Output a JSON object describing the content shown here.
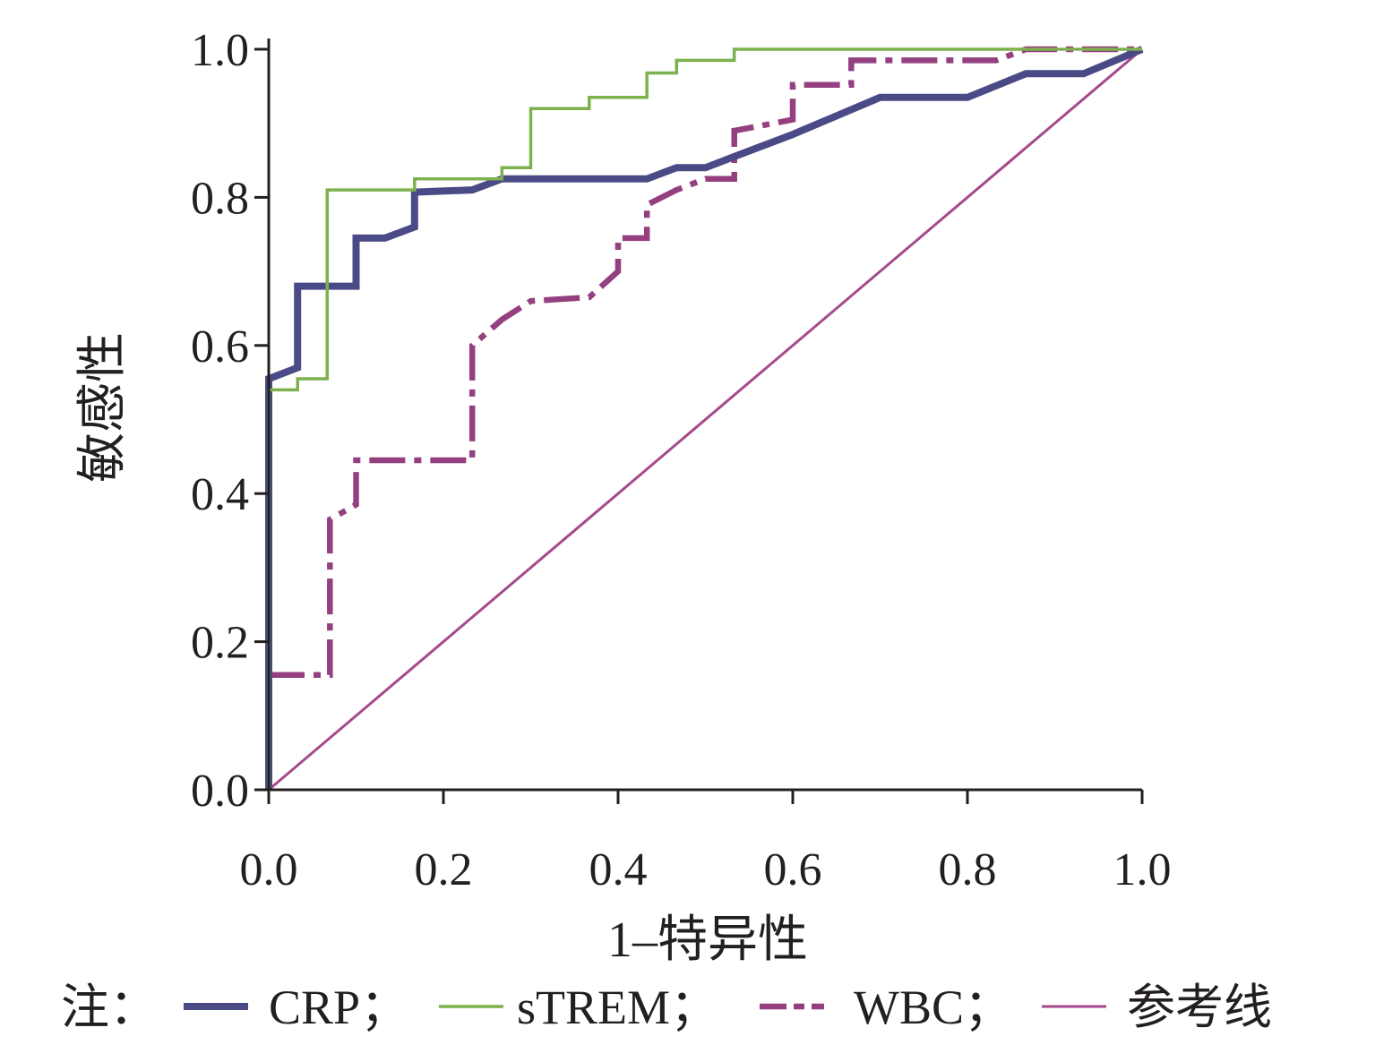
{
  "chart_data": {
    "type": "line",
    "title": "",
    "xlabel": "1–特异性",
    "ylabel": "敏感性",
    "xlim": [
      0,
      1
    ],
    "ylim": [
      0,
      1
    ],
    "xticks": [
      "0.0",
      "0.2",
      "0.4",
      "0.6",
      "0.8",
      "1.0"
    ],
    "yticks": [
      "0.0",
      "0.2",
      "0.4",
      "0.6",
      "0.8",
      "1.0"
    ],
    "grid": false,
    "legend_position": "bottom",
    "legend_prefix": "注：",
    "series": [
      {
        "name": "CRP；",
        "color": "#4a4a86",
        "style": "solid-thick",
        "points": [
          [
            0,
            0
          ],
          [
            0,
            0.555
          ],
          [
            0.033,
            0.57
          ],
          [
            0.033,
            0.68
          ],
          [
            0.1,
            0.68
          ],
          [
            0.1,
            0.745
          ],
          [
            0.133,
            0.745
          ],
          [
            0.167,
            0.76
          ],
          [
            0.167,
            0.807
          ],
          [
            0.233,
            0.81
          ],
          [
            0.267,
            0.825
          ],
          [
            0.333,
            0.825
          ],
          [
            0.433,
            0.825
          ],
          [
            0.467,
            0.84
          ],
          [
            0.5,
            0.84
          ],
          [
            0.533,
            0.855
          ],
          [
            0.6,
            0.885
          ],
          [
            0.7,
            0.935
          ],
          [
            0.8,
            0.935
          ],
          [
            0.867,
            0.967
          ],
          [
            0.933,
            0.967
          ],
          [
            1,
            1
          ]
        ]
      },
      {
        "name": "sTREM；",
        "color": "#7db14e",
        "style": "solid-thin",
        "points": [
          [
            0,
            0
          ],
          [
            0,
            0.54
          ],
          [
            0.033,
            0.54
          ],
          [
            0.033,
            0.555
          ],
          [
            0.067,
            0.555
          ],
          [
            0.067,
            0.81
          ],
          [
            0.167,
            0.81
          ],
          [
            0.167,
            0.825
          ],
          [
            0.267,
            0.825
          ],
          [
            0.267,
            0.84
          ],
          [
            0.3,
            0.84
          ],
          [
            0.3,
            0.92
          ],
          [
            0.367,
            0.92
          ],
          [
            0.367,
            0.935
          ],
          [
            0.433,
            0.935
          ],
          [
            0.433,
            0.968
          ],
          [
            0.467,
            0.968
          ],
          [
            0.467,
            0.985
          ],
          [
            0.533,
            0.985
          ],
          [
            0.533,
            1.0
          ],
          [
            1,
            1
          ]
        ]
      },
      {
        "name": "WBC；",
        "color": "#943f7f",
        "style": "dashed",
        "points": [
          [
            0,
            0.155
          ],
          [
            0.07,
            0.155
          ],
          [
            0.07,
            0.365
          ],
          [
            0.1,
            0.385
          ],
          [
            0.1,
            0.445
          ],
          [
            0.233,
            0.445
          ],
          [
            0.233,
            0.6
          ],
          [
            0.267,
            0.635
          ],
          [
            0.3,
            0.66
          ],
          [
            0.367,
            0.665
          ],
          [
            0.4,
            0.7
          ],
          [
            0.4,
            0.745
          ],
          [
            0.433,
            0.745
          ],
          [
            0.433,
            0.79
          ],
          [
            0.467,
            0.81
          ],
          [
            0.5,
            0.825
          ],
          [
            0.533,
            0.825
          ],
          [
            0.533,
            0.89
          ],
          [
            0.6,
            0.905
          ],
          [
            0.6,
            0.952
          ],
          [
            0.667,
            0.952
          ],
          [
            0.667,
            0.985
          ],
          [
            0.833,
            0.985
          ],
          [
            0.867,
            1.0
          ],
          [
            1,
            1
          ]
        ]
      },
      {
        "name": "参考线",
        "color": "#a54a8c",
        "style": "reference",
        "points": [
          [
            0,
            0
          ],
          [
            1,
            1
          ]
        ]
      }
    ]
  }
}
